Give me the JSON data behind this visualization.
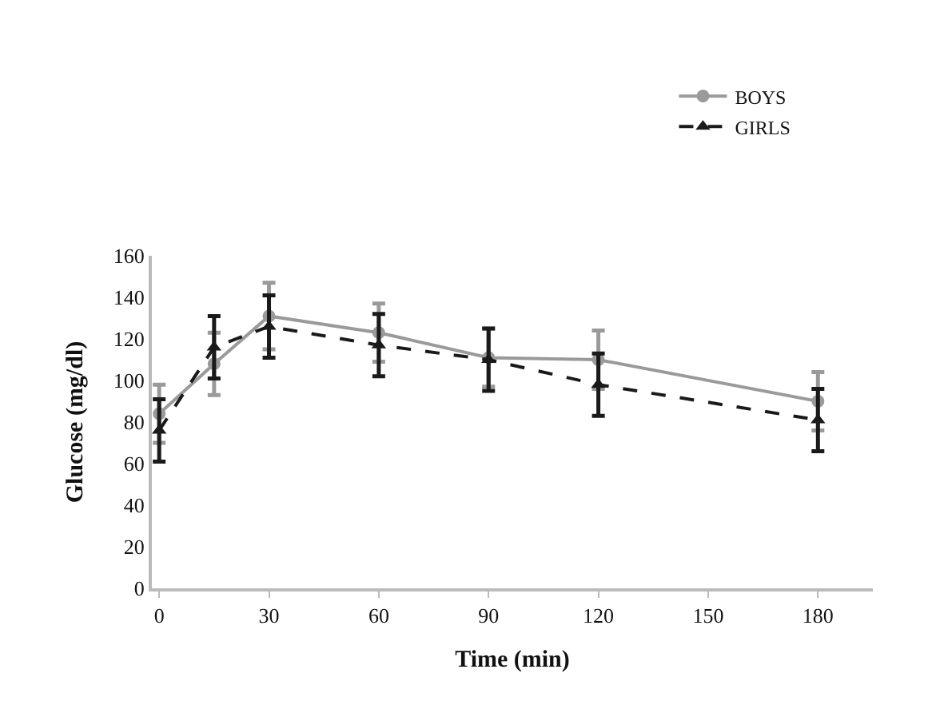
{
  "chart_data": {
    "type": "line",
    "xlabel": "Time (min)",
    "ylabel": "Glucose (mg/dl)",
    "x": [
      0,
      15,
      30,
      60,
      90,
      120,
      180
    ],
    "series": [
      {
        "name": "BOYS",
        "color": "#9a9a9a",
        "values": [
          84,
          108,
          131,
          123,
          111,
          110,
          90
        ],
        "errors": [
          14,
          15,
          16,
          14,
          14,
          14,
          14
        ],
        "marker": "circle",
        "line_style": "solid"
      },
      {
        "name": "GIRLS",
        "color": "#1a1a1a",
        "values": [
          76,
          116,
          126,
          117,
          110,
          98,
          81
        ],
        "errors": [
          15,
          15,
          15,
          15,
          15,
          15,
          15
        ],
        "marker": "triangle",
        "line_style": "dashed"
      }
    ],
    "xlim": [
      -2,
      195
    ],
    "xticks": [
      0,
      30,
      60,
      90,
      120,
      150,
      180
    ],
    "ylim": [
      0,
      160
    ],
    "yticks": [
      0,
      20,
      40,
      60,
      80,
      100,
      120,
      140,
      160
    ],
    "legend": "top right"
  }
}
